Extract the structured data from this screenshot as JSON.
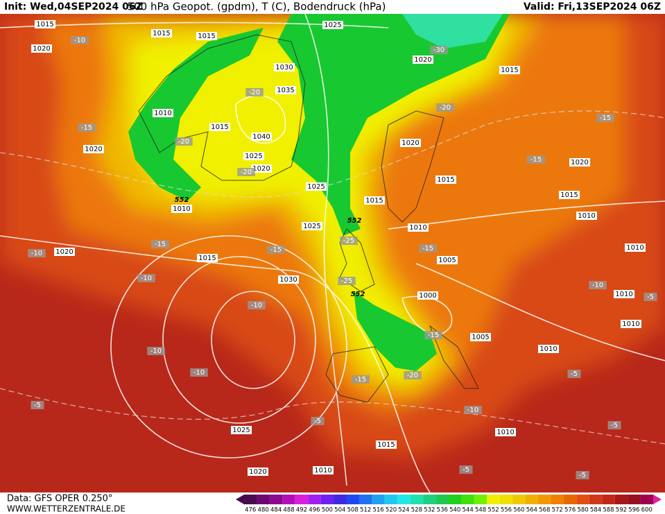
{
  "header": {
    "init": "Init: Wed,04SEP2024 06Z",
    "title": "500 hPa Geopot. (gpdm), T (C), Bodendruck (hPa)",
    "valid": "Valid: Fri,13SEP2024 06Z"
  },
  "footer": {
    "source": "Data: GFS OPER 0.250°",
    "site": "WWW.WETTERZENTRALE.DE"
  },
  "map": {
    "pressure_labels": [
      "1015",
      "1020",
      "1015",
      "1015",
      "1025",
      "1030",
      "1035",
      "1010",
      "1015",
      "1040",
      "1025",
      "1020",
      "1020",
      "1010",
      "1025",
      "1015",
      "1020",
      "1015",
      "1020",
      "1015",
      "1020",
      "1015",
      "1010",
      "1010",
      "1025",
      "1020",
      "1015",
      "1030",
      "1005",
      "1000",
      "1005",
      "1010",
      "1010",
      "1010",
      "1010",
      "1010",
      "1025",
      "1015",
      "1020",
      "1010"
    ],
    "temperature_labels": [
      "-10",
      "-30",
      "-20",
      "-15",
      "-20",
      "-20",
      "-20",
      "-15",
      "-15",
      "-25",
      "-15",
      "-15",
      "-15",
      "-10",
      "-10",
      "-10",
      "-5",
      "-10",
      "-25",
      "-15",
      "-10",
      "-10",
      "-15",
      "-20",
      "-5",
      "-10",
      "-5",
      "-5",
      "-5",
      "-5",
      "-5"
    ],
    "geopotential_labels": [
      "552",
      "552",
      "552"
    ]
  },
  "colorbar": {
    "values": [
      476,
      480,
      484,
      488,
      492,
      496,
      500,
      504,
      508,
      512,
      516,
      520,
      524,
      528,
      532,
      536,
      540,
      544,
      548,
      552,
      556,
      560,
      564,
      568,
      572,
      576,
      580,
      584,
      588,
      592,
      596,
      600
    ],
    "colors": [
      "#4a0a50",
      "#6a0a70",
      "#8a0a90",
      "#b010b8",
      "#d820d8",
      "#a020f0",
      "#7020f0",
      "#4028e0",
      "#2048f0",
      "#2070f0",
      "#20a0f0",
      "#20c8f0",
      "#20e8e8",
      "#20e0b0",
      "#20d080",
      "#20c850",
      "#20d020",
      "#40e010",
      "#70f000",
      "#f0f000",
      "#f0e000",
      "#f0c800",
      "#f0b000",
      "#f09800",
      "#f08000",
      "#e86800",
      "#e05010",
      "#d03818",
      "#c02818",
      "#a81818",
      "#981020",
      "#a00050"
    ]
  }
}
